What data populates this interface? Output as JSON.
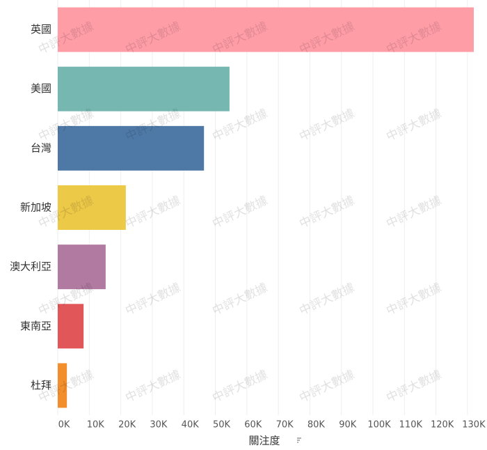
{
  "chart_data": {
    "type": "bar",
    "orientation": "horizontal",
    "categories": [
      "英國",
      "美國",
      "台灣",
      "新加坡",
      "澳大利亞",
      "東南亞",
      "杜拜"
    ],
    "values": [
      132000,
      54500,
      46400,
      21600,
      15200,
      8200,
      2900
    ],
    "colors": [
      "#ff9da7",
      "#76b7b2",
      "#4e79a7",
      "#edc948",
      "#b07aa1",
      "#e15759",
      "#f28e2b"
    ],
    "xlabel": "關注度",
    "xlim": [
      0,
      132000
    ],
    "xticks": [
      {
        "value": 0,
        "label": "0K"
      },
      {
        "value": 10000,
        "label": "10K"
      },
      {
        "value": 20000,
        "label": "20K"
      },
      {
        "value": 30000,
        "label": "30K"
      },
      {
        "value": 40000,
        "label": "40K"
      },
      {
        "value": 50000,
        "label": "50K"
      },
      {
        "value": 60000,
        "label": "60K"
      },
      {
        "value": 70000,
        "label": "70K"
      },
      {
        "value": 80000,
        "label": "80K"
      },
      {
        "value": 90000,
        "label": "90K"
      },
      {
        "value": 100000,
        "label": "100K"
      },
      {
        "value": 110000,
        "label": "110K"
      },
      {
        "value": 120000,
        "label": "120K"
      },
      {
        "value": 130000,
        "label": "130K"
      }
    ],
    "grid": true,
    "watermark": "中評大數據"
  }
}
